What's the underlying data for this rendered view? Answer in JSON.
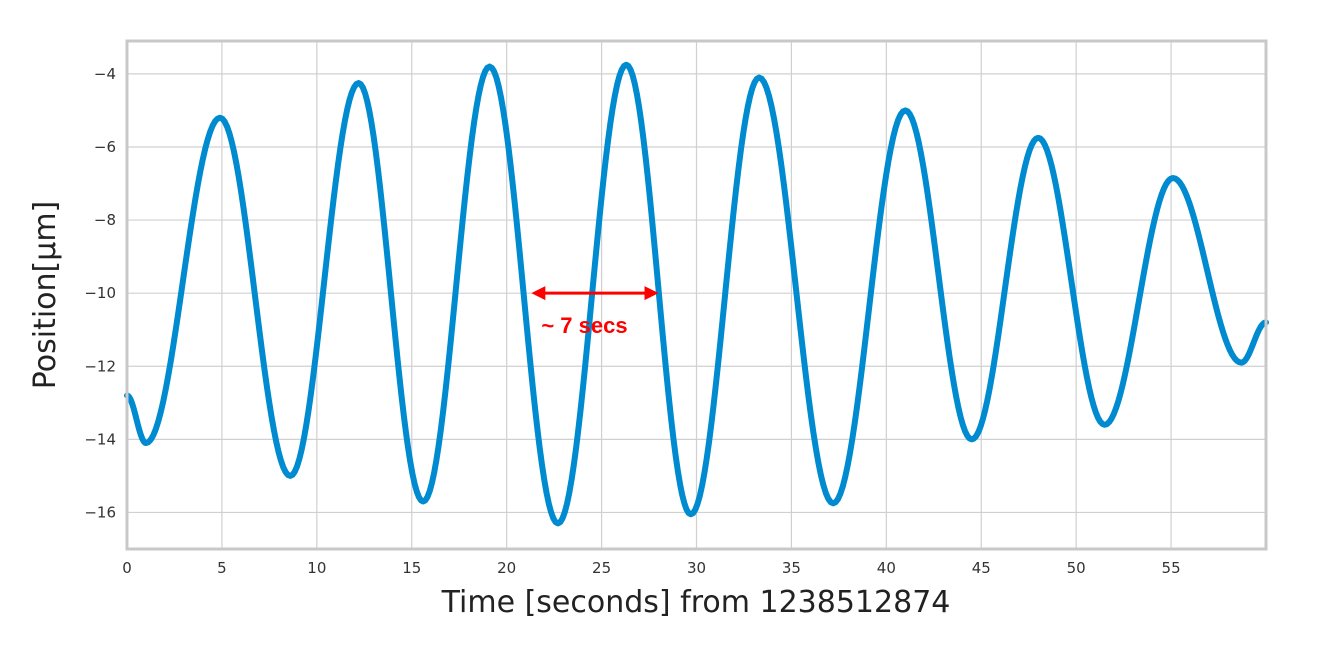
{
  "chart_data": {
    "type": "line",
    "title": "",
    "xlabel": "Time [seconds] from 1238512874",
    "ylabel": "Position[μm]",
    "xlim": [
      0,
      60
    ],
    "ylim": [
      -17,
      -3.1
    ],
    "xticks": [
      0,
      5,
      10,
      15,
      20,
      25,
      30,
      35,
      40,
      45,
      50,
      55
    ],
    "yticks": [
      -16,
      -14,
      -12,
      -10,
      -8,
      -6,
      -4
    ],
    "xtick_labels": [
      "0",
      "5",
      "10",
      "15",
      "20",
      "25",
      "30",
      "35",
      "40",
      "45",
      "50",
      "55"
    ],
    "ytick_labels": [
      "−16",
      "−14",
      "−12",
      "−10",
      "−8",
      "−6",
      "−4"
    ],
    "grid": true,
    "series": [
      {
        "color": "#008bd0",
        "extrema": [
          [
            0,
            -12.8
          ],
          [
            1.0,
            -14.1
          ],
          [
            4.9,
            -5.2
          ],
          [
            8.6,
            -15.0
          ],
          [
            12.2,
            -4.25
          ],
          [
            15.6,
            -15.7
          ],
          [
            19.1,
            -3.8
          ],
          [
            22.7,
            -16.3
          ],
          [
            26.3,
            -3.75
          ],
          [
            29.7,
            -16.05
          ],
          [
            33.3,
            -4.1
          ],
          [
            37.2,
            -15.75
          ],
          [
            41.0,
            -5.0
          ],
          [
            44.5,
            -14.0
          ],
          [
            48.0,
            -5.75
          ],
          [
            51.5,
            -13.6
          ],
          [
            55.1,
            -6.85
          ],
          [
            58.7,
            -11.9
          ],
          [
            60,
            -10.8
          ]
        ]
      }
    ],
    "annotations": [
      {
        "type": "double-arrow",
        "x_start": 21.3,
        "x_end": 28.0,
        "y": -10.0,
        "text": "~ 7 secs",
        "color": "#ff0000"
      }
    ]
  }
}
